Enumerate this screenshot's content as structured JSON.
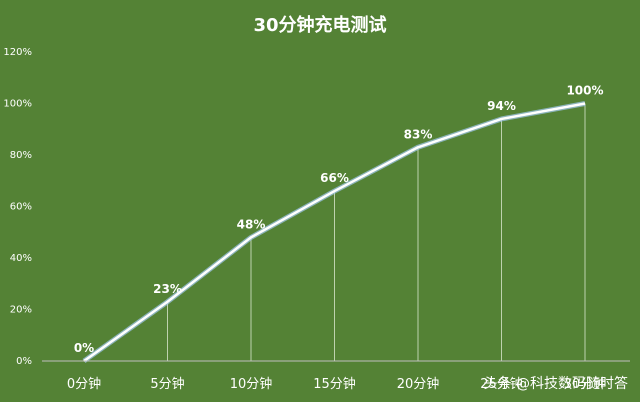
{
  "chart_data": {
    "type": "line",
    "title": "30分钟充电测试",
    "categories": [
      "0分钟",
      "5分钟",
      "10分钟",
      "15分钟",
      "20分钟",
      "25分钟",
      "30分钟"
    ],
    "values": [
      0,
      23,
      48,
      66,
      83,
      94,
      100
    ],
    "data_labels": [
      "0%",
      "23%",
      "48%",
      "66%",
      "83%",
      "94%",
      "100%"
    ],
    "y_ticks": [
      "0%",
      "20%",
      "40%",
      "60%",
      "80%",
      "100%",
      "120%"
    ],
    "ylim": [
      0,
      120
    ],
    "xlabel": "",
    "ylabel": "",
    "grid": false,
    "drop_lines": true,
    "legend": "none",
    "colors": {
      "background": "#548235",
      "line": "#ffffff",
      "line_glow": "#9dc3e6",
      "drop_line": "#d9e8cf",
      "text": "#ffffff"
    }
  },
  "watermark": "头条 @科技数码随时答"
}
